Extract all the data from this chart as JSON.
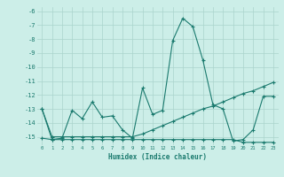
{
  "x": [
    0,
    1,
    2,
    3,
    4,
    5,
    6,
    7,
    8,
    9,
    10,
    11,
    12,
    13,
    14,
    15,
    16,
    17,
    18,
    19,
    20,
    21,
    22,
    23
  ],
  "line1": [
    -13.0,
    -15.2,
    -15.1,
    -13.1,
    -13.7,
    -12.5,
    -13.6,
    -13.5,
    -14.5,
    -15.1,
    -11.5,
    -13.4,
    -13.1,
    -8.1,
    -6.5,
    -7.1,
    -9.5,
    -12.7,
    -13.0,
    -15.3,
    -15.2,
    -14.5,
    -12.1,
    -12.1
  ],
  "line2": [
    -13.0,
    -15.0,
    -15.0,
    -15.0,
    -15.0,
    -15.0,
    -15.0,
    -15.0,
    -15.0,
    -15.0,
    -14.8,
    -14.5,
    -14.2,
    -13.9,
    -13.6,
    -13.3,
    -13.0,
    -12.8,
    -12.5,
    -12.2,
    -11.9,
    -11.7,
    -11.4,
    -11.1
  ],
  "line3": [
    -15.1,
    -15.2,
    -15.2,
    -15.2,
    -15.2,
    -15.2,
    -15.2,
    -15.2,
    -15.2,
    -15.2,
    -15.2,
    -15.2,
    -15.2,
    -15.2,
    -15.2,
    -15.2,
    -15.2,
    -15.2,
    -15.2,
    -15.2,
    -15.4,
    -15.4,
    -15.4,
    -15.4
  ],
  "line_color": "#1a7a6e",
  "bg_color": "#cceee8",
  "grid_color": "#aad4cc",
  "xlabel": "Humidex (Indice chaleur)",
  "ylim": [
    -15.6,
    -5.7
  ],
  "yticks": [
    -15,
    -14,
    -13,
    -12,
    -11,
    -10,
    -9,
    -8,
    -7,
    -6
  ],
  "xticks": [
    0,
    1,
    2,
    3,
    4,
    5,
    6,
    7,
    8,
    9,
    10,
    11,
    12,
    13,
    14,
    15,
    16,
    17,
    18,
    19,
    20,
    21,
    22,
    23
  ]
}
